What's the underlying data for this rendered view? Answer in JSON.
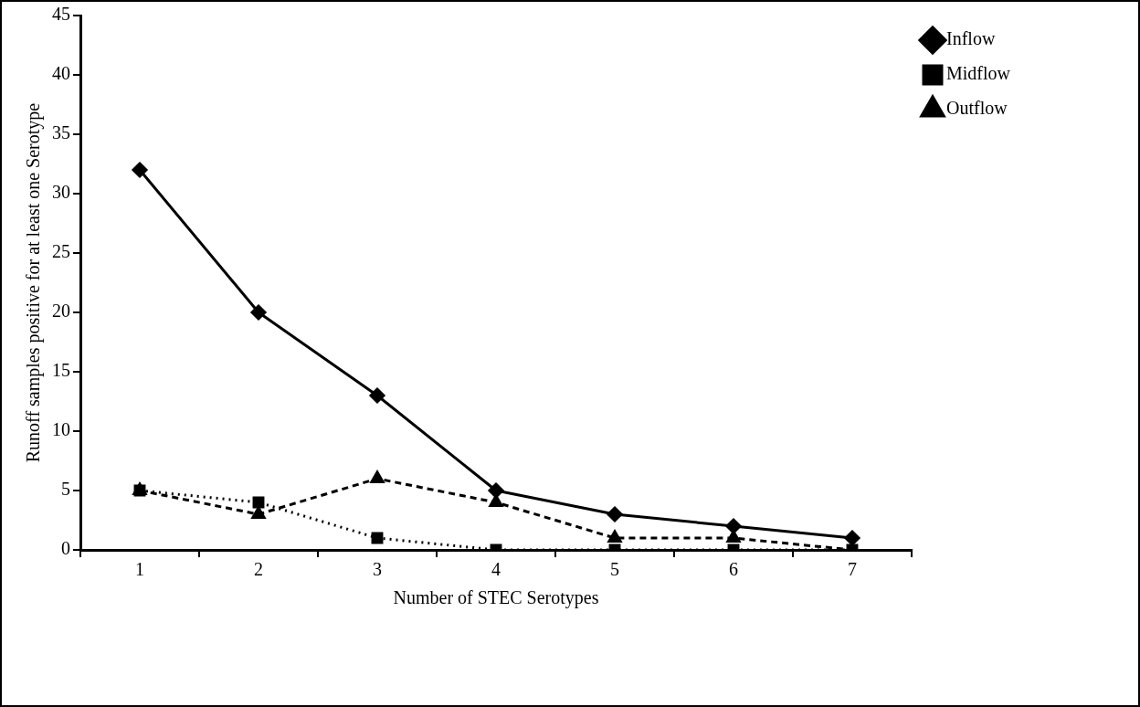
{
  "chart_data": {
    "type": "line",
    "xlabel": "Number of STEC Serotypes",
    "ylabel": "Runoff samples positive for at least one Serotype",
    "categories": [
      "1",
      "2",
      "3",
      "4",
      "5",
      "6",
      "7"
    ],
    "series": [
      {
        "name": "Inflow",
        "color": "#000000",
        "values": [
          32,
          20,
          13,
          5,
          3,
          2,
          1
        ],
        "marker": "diamond",
        "line_style": "solid"
      },
      {
        "name": "Midflow",
        "color": "#000000",
        "values": [
          5,
          4,
          1,
          0,
          0,
          0,
          0
        ],
        "marker": "square",
        "line_style": "dotted"
      },
      {
        "name": "Outflow",
        "color": "#000000",
        "values": [
          5,
          3,
          6,
          4,
          1,
          1,
          0
        ],
        "marker": "triangle",
        "line_style": "dashed"
      }
    ],
    "ylim": [
      0,
      45
    ],
    "yticks": [
      0,
      5,
      10,
      15,
      20,
      25,
      30,
      35,
      40,
      45
    ],
    "grid": false,
    "legend": "top right"
  }
}
